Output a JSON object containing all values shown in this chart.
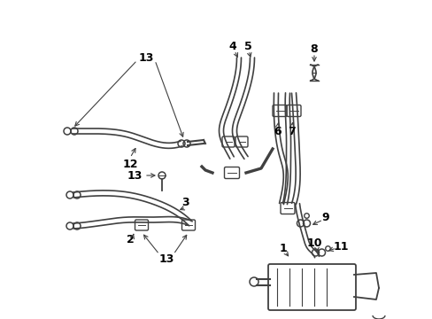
{
  "bg_color": "#ffffff",
  "line_color": "#404040",
  "text_color": "#000000",
  "fig_width": 4.89,
  "fig_height": 3.6,
  "dpi": 100,
  "lw_hose": 2.2,
  "lw_detail": 1.0,
  "label_fontsize": 9
}
